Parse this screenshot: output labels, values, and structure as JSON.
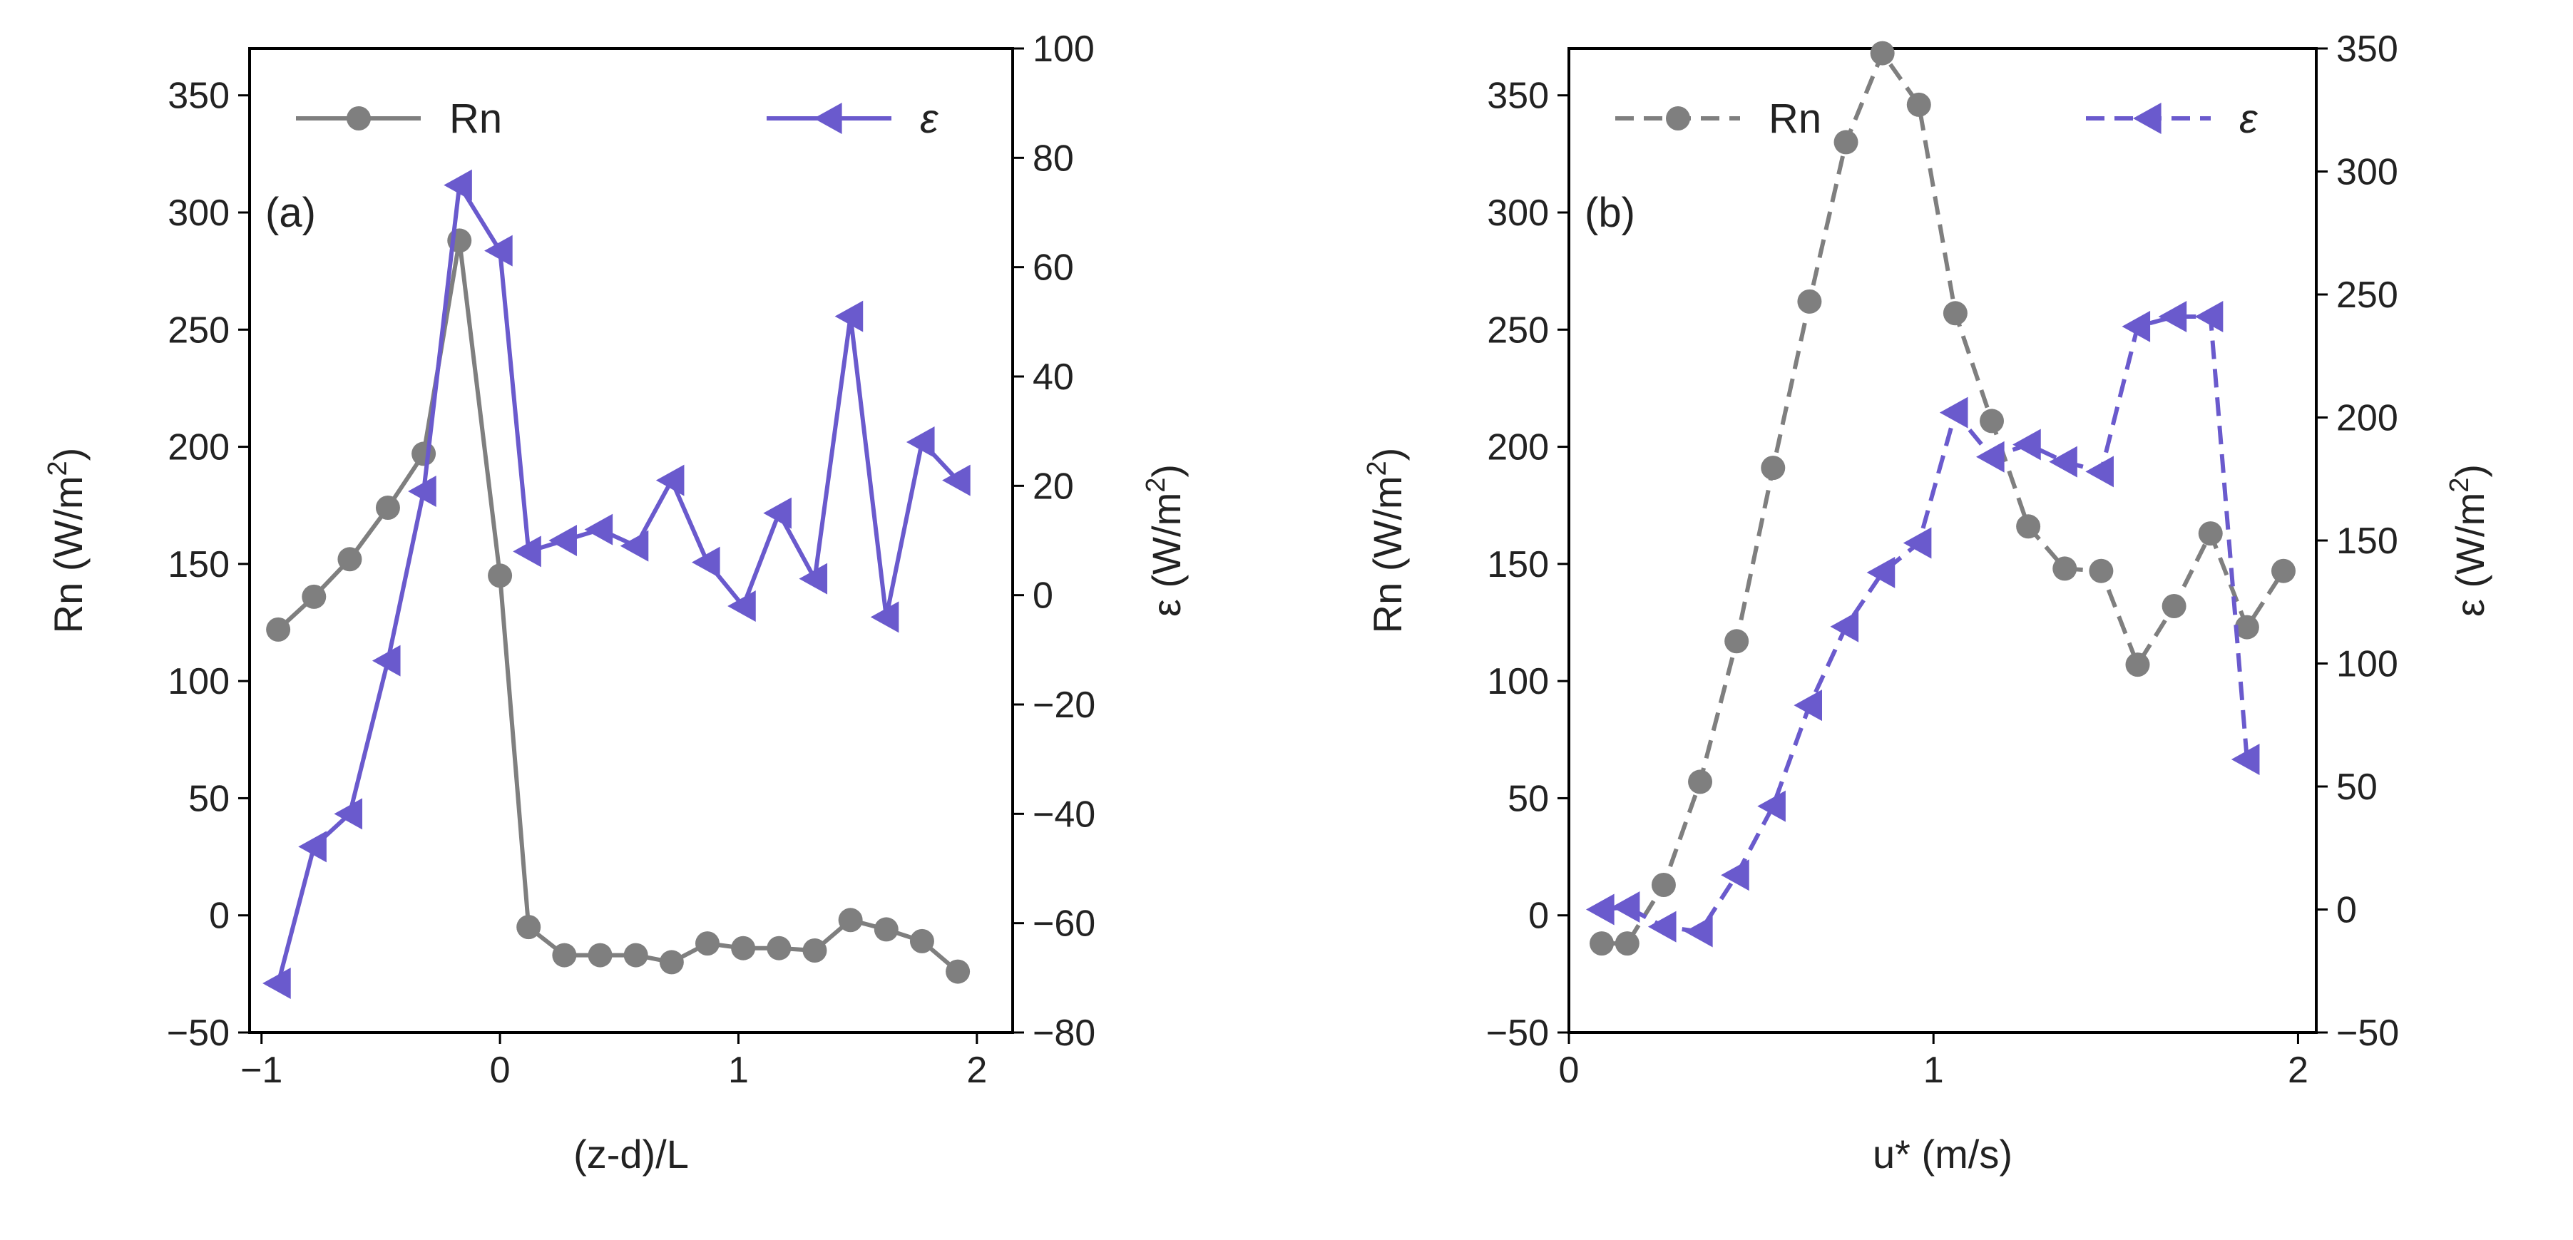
{
  "chart_data": [
    {
      "type": "line",
      "panel_label": "(a)",
      "xlabel": "(z-d)/L",
      "ylabel_left": {
        "prefix": "Rn (W/m",
        "sup": "2",
        "suffix": ")"
      },
      "ylabel_right": {
        "prefix": "ε (W/m",
        "sup": "2",
        "suffix": ")"
      },
      "xlim": [
        -1.05,
        2.15
      ],
      "ylim_left": [
        -50,
        370
      ],
      "ylim_right": [
        -80,
        100
      ],
      "xticks": [
        -1,
        0,
        1,
        2
      ],
      "xtick_labels": [
        "−1",
        "0",
        "1",
        "2"
      ],
      "yticks_left": [
        -50,
        0,
        50,
        100,
        150,
        200,
        250,
        300,
        350
      ],
      "ytick_labels_left": [
        "−50",
        "0",
        "50",
        "100",
        "150",
        "200",
        "250",
        "300",
        "350"
      ],
      "yticks_right": [
        -80,
        -60,
        -40,
        -20,
        0,
        20,
        40,
        60,
        80,
        100
      ],
      "ytick_labels_right": [
        "−80",
        "−60",
        "−40",
        "−20",
        "0",
        "20",
        "40",
        "60",
        "80",
        "100"
      ],
      "legend": {
        "placement": "top",
        "entries": [
          "Rn",
          "ε"
        ]
      },
      "series": [
        {
          "name": "Rn",
          "axis": "left",
          "color": "#7f7f7f",
          "marker": "circle",
          "linestyle": "solid",
          "x": [
            -0.93,
            -0.78,
            -0.63,
            -0.47,
            -0.32,
            -0.17,
            0.0,
            0.12,
            0.27,
            0.42,
            0.57,
            0.72,
            0.87,
            1.02,
            1.17,
            1.32,
            1.47,
            1.62,
            1.77,
            1.92
          ],
          "y": [
            122,
            136,
            152,
            174,
            197,
            288,
            145,
            -5,
            -17,
            -17,
            -17,
            -20,
            -12,
            -14,
            -14,
            -15,
            -2,
            -6,
            -11,
            -24
          ]
        },
        {
          "name": "ε",
          "axis": "right",
          "color": "#6a5acd",
          "marker": "triangle-left",
          "linestyle": "solid",
          "x": [
            -0.93,
            -0.78,
            -0.63,
            -0.47,
            -0.32,
            -0.17,
            0.0,
            0.12,
            0.27,
            0.42,
            0.57,
            0.72,
            0.87,
            1.02,
            1.17,
            1.32,
            1.47,
            1.62,
            1.77,
            1.92
          ],
          "y": [
            -71,
            -46,
            -40,
            -12,
            19,
            75,
            63,
            8,
            10,
            12,
            9,
            21,
            6,
            -2,
            15,
            3,
            51,
            -4,
            28,
            21
          ]
        }
      ]
    },
    {
      "type": "line",
      "panel_label": "(b)",
      "xlabel": "u* (m/s)",
      "ylabel_left": {
        "prefix": "Rn (W/m",
        "sup": "2",
        "suffix": ")"
      },
      "ylabel_right": {
        "prefix": "ε (W/m",
        "sup": "2",
        "suffix": ")"
      },
      "xlim": [
        0.0,
        2.05
      ],
      "ylim_left": [
        -50,
        370
      ],
      "ylim_right": [
        -50,
        350
      ],
      "xticks": [
        0,
        1,
        2
      ],
      "xtick_labels": [
        "0",
        "1",
        "2"
      ],
      "yticks_left": [
        -50,
        0,
        50,
        100,
        150,
        200,
        250,
        300,
        350
      ],
      "ytick_labels_left": [
        "−50",
        "0",
        "50",
        "100",
        "150",
        "200",
        "250",
        "300",
        "350"
      ],
      "yticks_right": [
        -50,
        0,
        50,
        100,
        150,
        200,
        250,
        300,
        350
      ],
      "ytick_labels_right": [
        "−50",
        "0",
        "50",
        "100",
        "150",
        "200",
        "250",
        "300",
        "350"
      ],
      "legend": {
        "placement": "top",
        "entries": [
          "Rn",
          "ε"
        ]
      },
      "series": [
        {
          "name": "Rn",
          "axis": "left",
          "color": "#7f7f7f",
          "marker": "circle",
          "linestyle": "dashed",
          "x": [
            0.09,
            0.16,
            0.26,
            0.36,
            0.46,
            0.56,
            0.66,
            0.76,
            0.86,
            0.96,
            1.06,
            1.16,
            1.26,
            1.36,
            1.46,
            1.56,
            1.66,
            1.76,
            1.86,
            1.96
          ],
          "y": [
            -12,
            -12,
            13,
            57,
            117,
            191,
            262,
            330,
            368,
            346,
            257,
            211,
            166,
            148,
            147,
            107,
            132,
            163,
            123,
            147
          ]
        },
        {
          "name": "ε",
          "axis": "right",
          "color": "#6a5acd",
          "marker": "triangle-left",
          "linestyle": "dashed",
          "x": [
            0.09,
            0.16,
            0.26,
            0.36,
            0.46,
            0.56,
            0.66,
            0.76,
            0.86,
            0.96,
            1.06,
            1.16,
            1.26,
            1.36,
            1.46,
            1.56,
            1.66,
            1.76,
            1.86
          ],
          "y": [
            0,
            1,
            -7,
            -9,
            14,
            42,
            83,
            115,
            137,
            149,
            202,
            184,
            189,
            182,
            178,
            237,
            241,
            241,
            61
          ]
        }
      ]
    }
  ]
}
